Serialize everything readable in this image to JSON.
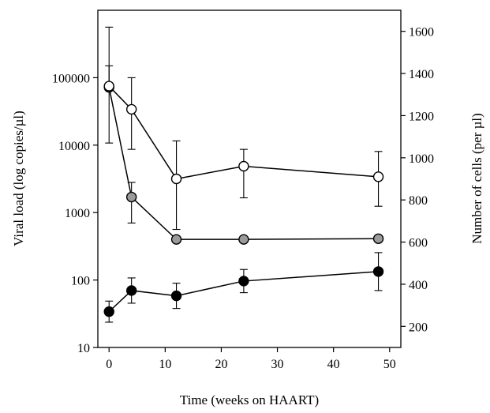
{
  "chart_data": {
    "type": "scatter",
    "title": "",
    "xlabel": "Time (weeks on HAART)",
    "ylabel_left": "Viral load (log copies/µl)",
    "ylabel_right": "Number of cells (per µl)",
    "x": [
      0,
      4,
      12,
      24,
      48
    ],
    "xlim": [
      -2,
      52
    ],
    "xticks": [
      0,
      10,
      20,
      30,
      40,
      50
    ],
    "xtick_labels": [
      "0",
      "10",
      "20",
      "30",
      "40",
      "50"
    ],
    "ylim_left": [
      10,
      1000000
    ],
    "yscale_left": "log",
    "yticks_left": [
      10,
      100,
      1000,
      10000,
      100000
    ],
    "yticks_left_labels": [
      "10",
      "100",
      "1000",
      "10000",
      "100000"
    ],
    "ylim_right": [
      100,
      1700
    ],
    "yticks_right": [
      200,
      400,
      600,
      800,
      1000,
      1200,
      1400,
      1600
    ],
    "yticks_right_labels": [
      "200",
      "400",
      "600",
      "800",
      "1000",
      "1200",
      "1400",
      "1600"
    ],
    "grid": false,
    "series": [
      {
        "marker": "grey",
        "axis": "left",
        "values": [
          72000,
          1700,
          400,
          400,
          410
        ],
        "err_low": [
          null,
          700,
          400,
          null,
          null
        ],
        "err_high": [
          150000,
          2800,
          400,
          null,
          null
        ],
        "color": "#9a9a9a"
      },
      {
        "marker": "open",
        "axis": "right",
        "values": [
          1340,
          1230,
          900,
          960,
          910
        ],
        "err_low": [
          1070,
          1040,
          660,
          810,
          770
        ],
        "err_high": [
          1620,
          1380,
          1080,
          1040,
          1030
        ],
        "color": "#ffffff"
      },
      {
        "marker": "black",
        "axis": "right",
        "values": [
          270,
          370,
          345,
          415,
          460
        ],
        "err_low": [
          220,
          310,
          285,
          360,
          370
        ],
        "err_high": [
          320,
          430,
          405,
          470,
          550
        ],
        "color": "#000000"
      }
    ]
  }
}
